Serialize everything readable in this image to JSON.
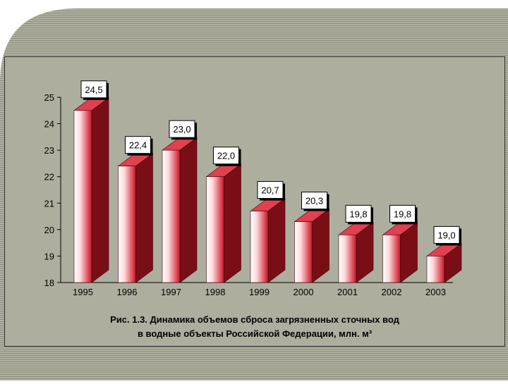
{
  "colors": {
    "background_stripe": "#8e8e7e",
    "background_stripe_alt": "#b0b0a0",
    "panel": "#aeae9e",
    "bar_front_light": "#ffffff",
    "bar_front_dark": "#cc1122",
    "bar_side": "#7a0e16",
    "bar_top": "#e04050",
    "label_box": "#ffffff"
  },
  "chart_data": {
    "type": "bar",
    "categories": [
      "1995",
      "1996",
      "1997",
      "1998",
      "1999",
      "2000",
      "2001",
      "2002",
      "2003"
    ],
    "values": [
      24.5,
      22.4,
      23.0,
      22.0,
      20.7,
      20.3,
      19.8,
      19.8,
      19.0
    ],
    "data_labels": [
      "24,5",
      "22,4",
      "23,0",
      "22,0",
      "20,7",
      "20,3",
      "19,8",
      "19,8",
      "19,0"
    ],
    "ylim": [
      18,
      25
    ],
    "yticks": [
      18,
      19,
      20,
      21,
      22,
      23,
      24,
      25
    ],
    "ytick_labels": [
      "18",
      "19",
      "20",
      "21",
      "22",
      "23",
      "24",
      "25"
    ],
    "grid": false,
    "legend": "none",
    "style": "3d-column",
    "xlabel": "",
    "ylabel": ""
  },
  "caption": {
    "line1": "Рис. 1.3. Динамика объемов сброса загрязненных сточных вод",
    "line2": "в водные объекты  Российской Федерации, млн. м³"
  }
}
